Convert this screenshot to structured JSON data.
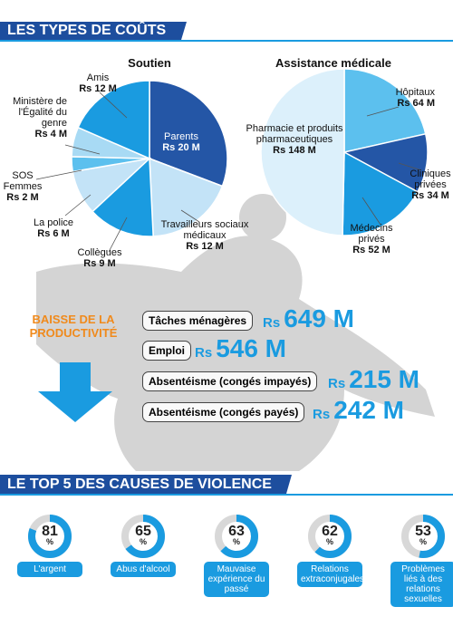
{
  "heading": "LES TYPES DE COÛTS",
  "chart_data": [
    {
      "type": "pie",
      "title": "Soutien",
      "categories": [
        "Parents",
        "Travailleurs sociaux médicaux",
        "Collègues",
        "La police",
        "SOS Femmes",
        "Ministère de l'Égalité du genre",
        "Amis"
      ],
      "values": [
        20,
        12,
        9,
        6,
        2,
        4,
        12
      ],
      "value_labels": [
        "Rs 20 M",
        "Rs 12 M",
        "Rs 9 M",
        "Rs 6 M",
        "Rs 2 M",
        "Rs 4 M",
        "Rs 12 M"
      ],
      "colors": [
        "#2456a6",
        "#c3e3f7",
        "#1a9be0",
        "#c3e3f7",
        "#5cc0ee",
        "#a8daf4",
        "#1a9be0"
      ]
    },
    {
      "type": "pie",
      "title": "Assistance médicale",
      "categories": [
        "Hôpitaux",
        "Cliniques privées",
        "Médecins privés",
        "Pharmacie et produits pharmaceutiques"
      ],
      "values": [
        64,
        34,
        52,
        148
      ],
      "value_labels": [
        "Rs 64 M",
        "Rs 34 M",
        "Rs 52 M",
        "Rs 148 M"
      ],
      "colors": [
        "#5cc0ee",
        "#2456a6",
        "#1a9be0",
        "#dcf0fb"
      ]
    },
    {
      "type": "list",
      "title": "BAISSE DE LA PRODUCTIVITÉ",
      "categories": [
        "Tâches ménagères",
        "Emploi",
        "Absentéisme (congés impayés)",
        "Absentéisme (congés payés)"
      ],
      "values": [
        649,
        546,
        215,
        242
      ],
      "currency": "Rs",
      "value_labels": [
        "649 M",
        "546 M",
        "215 M",
        "242 M"
      ]
    },
    {
      "type": "donut",
      "title": "LE TOP 5 DES CAUSES DE VIOLENCE",
      "categories": [
        "L'argent",
        "Abus d'alcool",
        "Mauvaise expérience du passé",
        "Relations extraconjugales",
        "Problèmes liés à des relations sexuelles"
      ],
      "values": [
        81,
        65,
        63,
        62,
        53
      ],
      "unit": "%",
      "color": "#1a9be0"
    }
  ]
}
